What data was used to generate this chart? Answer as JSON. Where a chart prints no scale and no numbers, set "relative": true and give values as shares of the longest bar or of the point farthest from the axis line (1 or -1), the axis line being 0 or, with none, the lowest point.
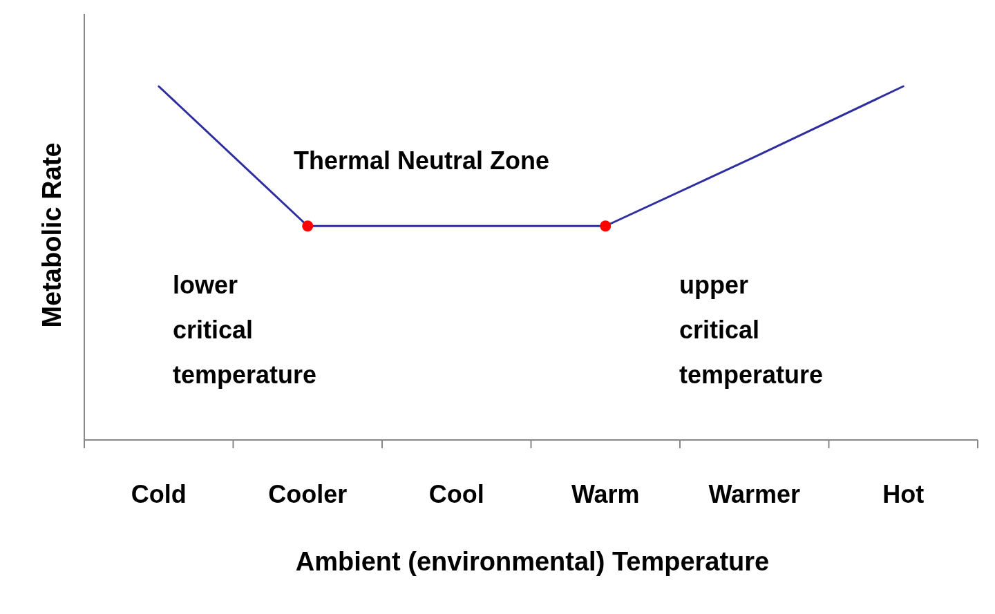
{
  "chart_data": {
    "type": "line",
    "relative": true,
    "xlabel": "Ambient (environmental) Temperature",
    "ylabel": "Metabolic Rate",
    "categories": [
      "Cold",
      "Cooler",
      "Cool",
      "Warm",
      "Warmer",
      "Hot"
    ],
    "series": [
      {
        "color": "#2e2e9e",
        "marker": "none",
        "values": [
          1,
          0.605,
          0.605,
          0.605,
          0.8,
          1
        ]
      },
      {
        "type": "scatter",
        "color": "#ff0000",
        "marker": "circle",
        "values": [
          null,
          0.605,
          null,
          0.605,
          null,
          null
        ]
      }
    ],
    "annotations": [
      "Thermal Neutral Zone",
      "lower critical temperature",
      "upper critical temperature"
    ]
  }
}
